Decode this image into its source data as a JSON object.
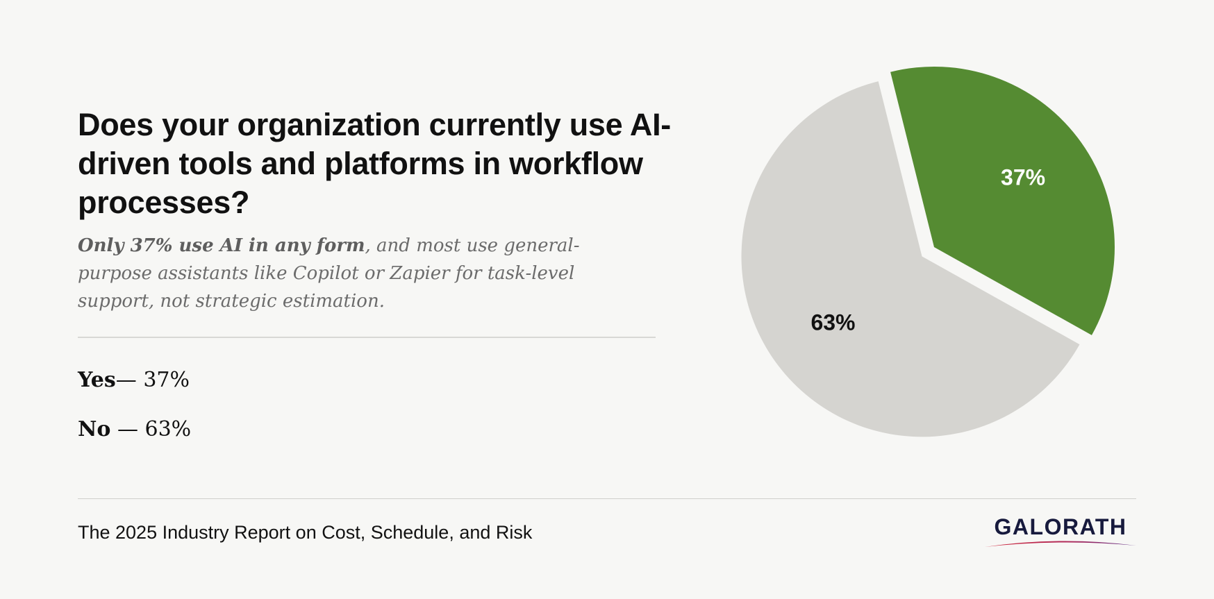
{
  "title": "Does your organization currently use AI-driven tools and platforms in workflow processes?",
  "subtitle": {
    "bold": "Only 37% use AI in any form",
    "rest": ", and most use general-purpose assistants like Copilot or Zapier for task-level support, not strategic estimation."
  },
  "legend": [
    {
      "label": "Yes",
      "value": "— 37%"
    },
    {
      "label": "No",
      "value": " — 63%"
    }
  ],
  "footer": "The 2025 Industry Report on Cost, Schedule, and Risk",
  "logo": "GALORATH",
  "colors": {
    "yes": "#558b32",
    "no": "#d5d4d0",
    "yes_label": "#ffffff",
    "no_label": "#111111",
    "background": "#f7f7f5"
  },
  "chart_data": {
    "type": "pie",
    "categories": [
      "Yes",
      "No"
    ],
    "values": [
      37,
      63
    ],
    "labels": [
      "37%",
      "63%"
    ],
    "exploded": "No"
  }
}
